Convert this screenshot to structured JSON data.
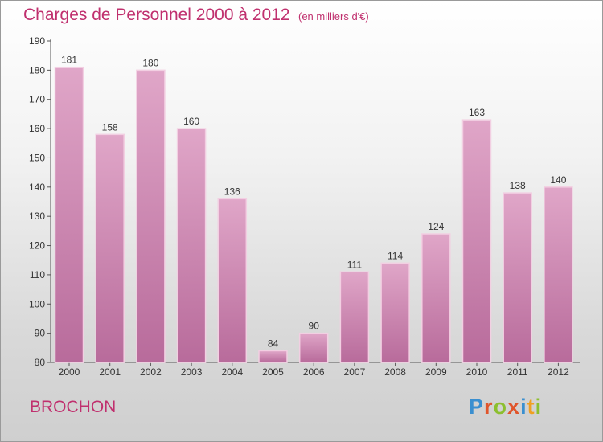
{
  "chart_data": {
    "type": "bar",
    "title": "Charges de Personnel 2000 à 2012",
    "subtitle": "(en milliers d'€)",
    "categories": [
      "2000",
      "2001",
      "2002",
      "2003",
      "2004",
      "2005",
      "2006",
      "2007",
      "2008",
      "2009",
      "2010",
      "2011",
      "2012"
    ],
    "values": [
      181,
      158,
      180,
      160,
      136,
      84,
      90,
      111,
      114,
      124,
      163,
      138,
      140
    ],
    "ylim": [
      80,
      190
    ],
    "yticks": [
      80,
      90,
      100,
      110,
      120,
      130,
      140,
      150,
      160,
      170,
      180,
      190
    ],
    "xlabel": "",
    "ylabel": "",
    "grid": false,
    "bar_color": "#e0a6c8",
    "bar_color_dark": "#b86b9b"
  },
  "footer": {
    "commune": "BROCHON",
    "logo_letters": [
      {
        "char": "P",
        "color": "#3a8fd0"
      },
      {
        "char": "r",
        "color": "#e0552b"
      },
      {
        "char": "o",
        "color": "#8cbf2f"
      },
      {
        "char": "x",
        "color": "#e0552b"
      },
      {
        "char": "i",
        "color": "#3a8fd0"
      },
      {
        "char": "t",
        "color": "#f0a020"
      },
      {
        "char": "i",
        "color": "#8cbf2f"
      }
    ]
  }
}
